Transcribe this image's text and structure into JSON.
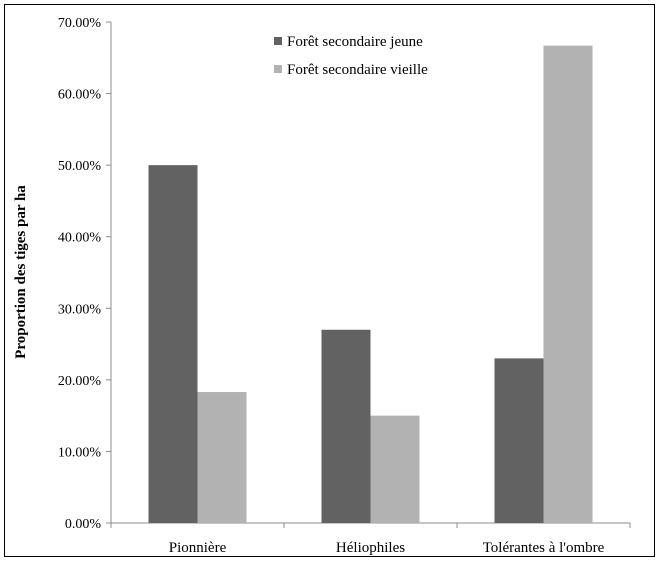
{
  "chart_data": {
    "type": "bar",
    "categories": [
      "Pionnière",
      "Héliophiles",
      "Tolérantes à l'ombre"
    ],
    "series": [
      {
        "name": "Forêt secondaire jeune",
        "values": [
          50.0,
          27.0,
          23.0
        ],
        "color": "#626262"
      },
      {
        "name": "Forêt secondaire vieille",
        "values": [
          18.3,
          15.0,
          66.7
        ],
        "color": "#b2b2b2"
      }
    ],
    "title": "",
    "xlabel": "",
    "ylabel": "Proportion des tiges par ha",
    "ylim": [
      0,
      70
    ],
    "yticks": [
      "0.00%",
      "10.00%",
      "20.00%",
      "30.00%",
      "40.00%",
      "50.00%",
      "60.00%",
      "70.00%"
    ],
    "grid": false,
    "legend_position": "top-right"
  }
}
